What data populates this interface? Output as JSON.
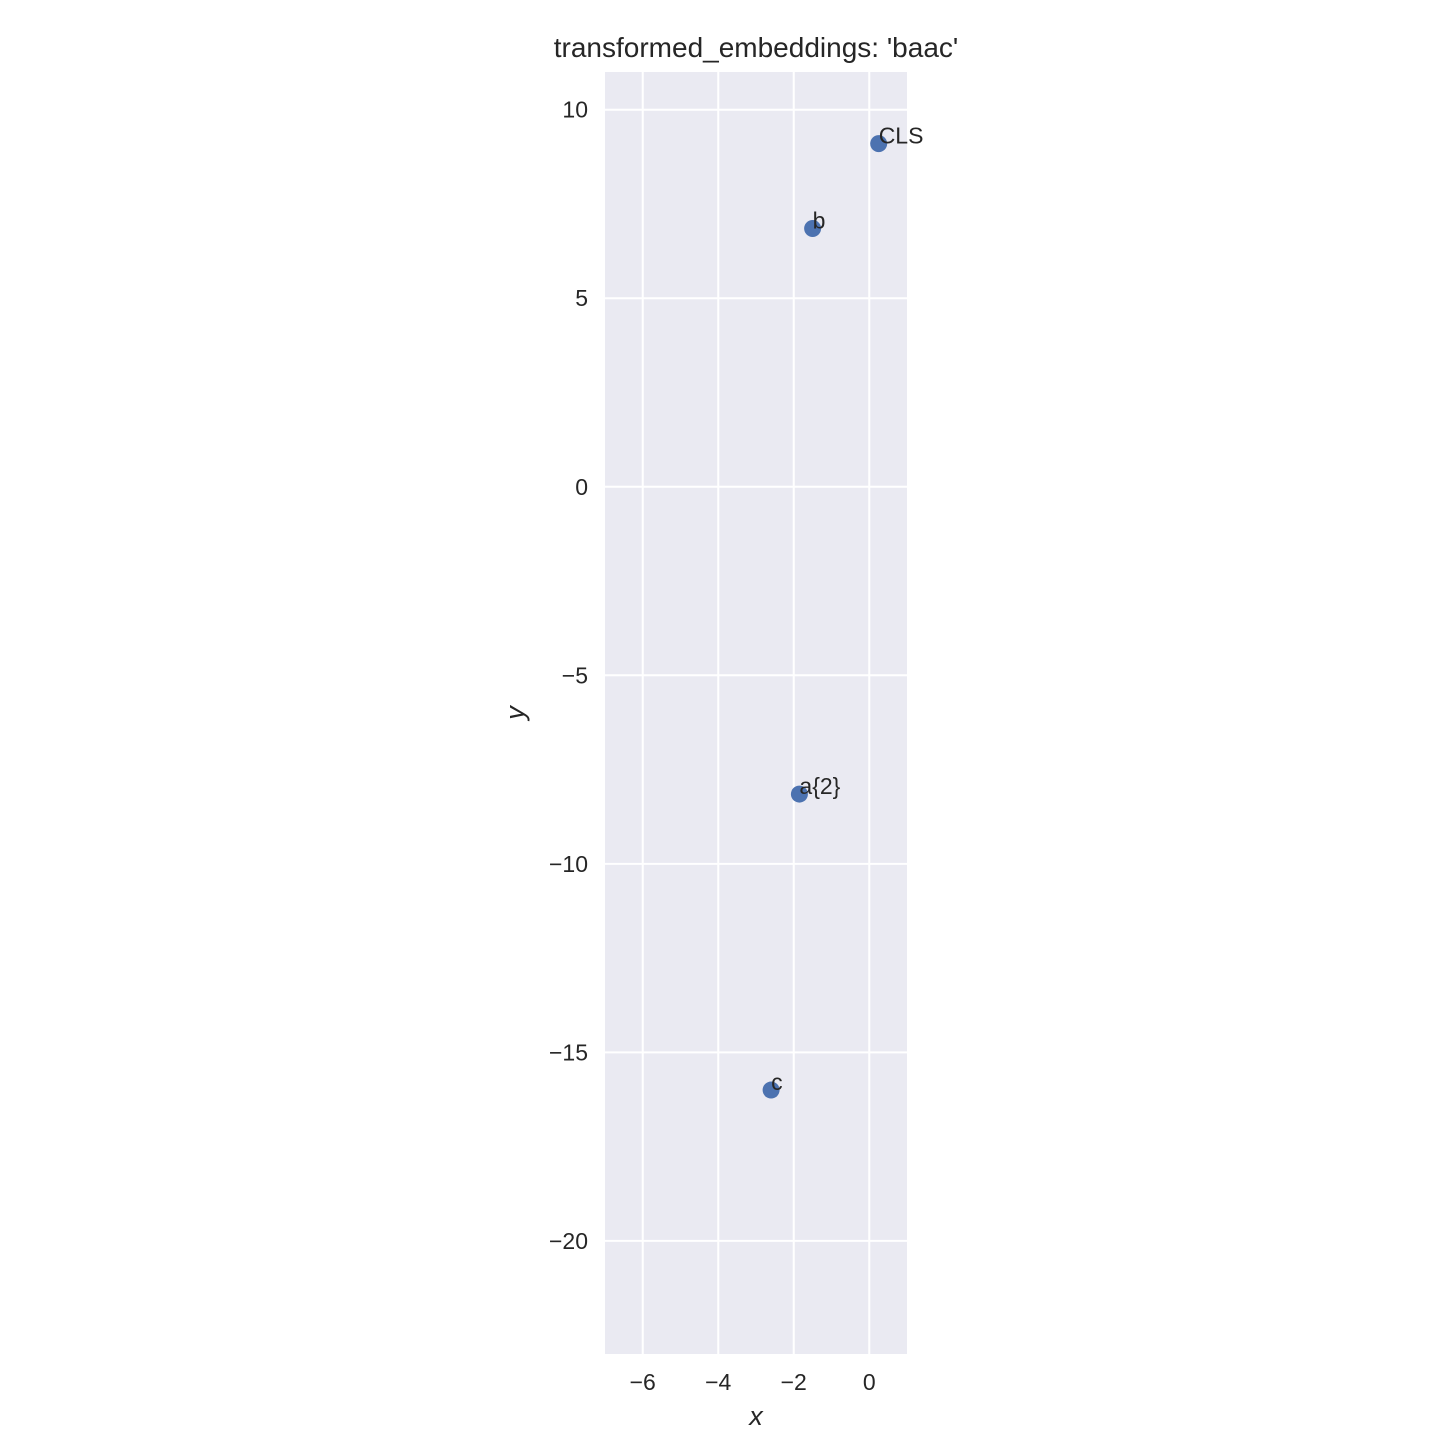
{
  "colors": {
    "plot_background": "#EAEAF2",
    "grid": "#FFFFFF",
    "point": "#4C72B0",
    "text": "#262626"
  },
  "chart_data": {
    "type": "scatter",
    "title": "transformed_embeddings: 'baac'",
    "xlabel": "x",
    "ylabel": "y",
    "xlim": [
      -7.0,
      1.0
    ],
    "ylim": [
      -23.0,
      11.0
    ],
    "x_ticks": [
      -6,
      -4,
      -2,
      0
    ],
    "y_ticks": [
      10,
      5,
      0,
      -5,
      -10,
      -15,
      -20
    ],
    "x_tick_labels": [
      "−6",
      "−4",
      "−2",
      "0"
    ],
    "y_tick_labels": [
      "10",
      "5",
      "0",
      "−5",
      "−10",
      "−15",
      "−20"
    ],
    "grid": true,
    "legend": false,
    "points": [
      {
        "label": "CLS",
        "x": 0.25,
        "y": 9.1
      },
      {
        "label": "b",
        "x": -1.5,
        "y": 6.85
      },
      {
        "label": "a{2}",
        "x": -1.85,
        "y": -8.15
      },
      {
        "label": "c",
        "x": -2.6,
        "y": -16.0
      }
    ]
  }
}
